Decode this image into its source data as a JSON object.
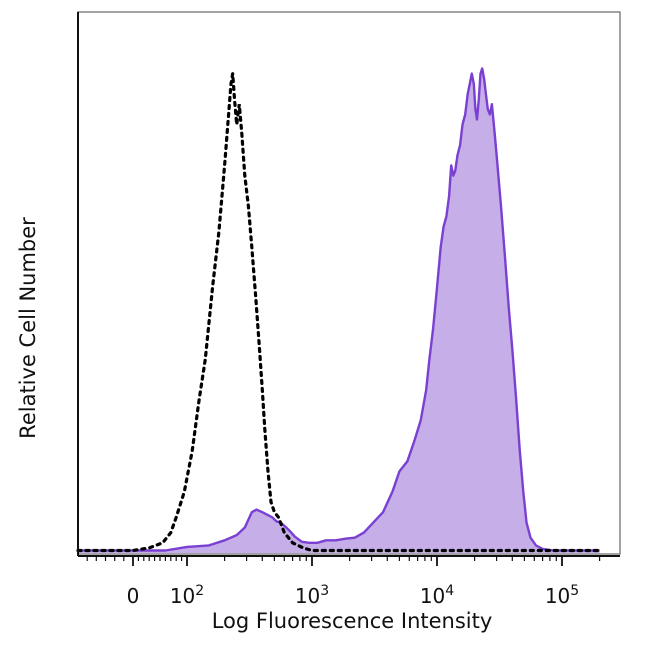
{
  "chart_data": {
    "type": "area",
    "title": "",
    "xlabel": "Log Fluorescence Intensity",
    "ylabel": "Relative Cell Number",
    "x_scale": "biexponential",
    "xlim": [
      -30,
      200000
    ],
    "ylim": [
      0,
      100
    ],
    "x_ticks": [
      {
        "value": 0,
        "label": "0",
        "sup": ""
      },
      {
        "value": 100,
        "label": "10",
        "sup": "2"
      },
      {
        "value": 1000,
        "label": "10",
        "sup": "3"
      },
      {
        "value": 10000,
        "label": "10",
        "sup": "4"
      },
      {
        "value": 100000,
        "label": "10",
        "sup": "5"
      }
    ],
    "grid": false,
    "legend": "none",
    "series": [
      {
        "style": "dotted",
        "color": "#000000",
        "fill": false,
        "points": [
          [
            -30,
            0.5
          ],
          [
            -10,
            0.5
          ],
          [
            0,
            0.5
          ],
          [
            30,
            1
          ],
          [
            55,
            2
          ],
          [
            70,
            4
          ],
          [
            80,
            7
          ],
          [
            95,
            12
          ],
          [
            110,
            20
          ],
          [
            125,
            30
          ],
          [
            140,
            38
          ],
          [
            160,
            52
          ],
          [
            180,
            63
          ],
          [
            200,
            76
          ],
          [
            215,
            86
          ],
          [
            225,
            92
          ],
          [
            232,
            94
          ],
          [
            240,
            89
          ],
          [
            250,
            84
          ],
          [
            262,
            88
          ],
          [
            275,
            82
          ],
          [
            290,
            74
          ],
          [
            310,
            68
          ],
          [
            330,
            60
          ],
          [
            355,
            50
          ],
          [
            380,
            40
          ],
          [
            400,
            32
          ],
          [
            420,
            24
          ],
          [
            445,
            16
          ],
          [
            470,
            10
          ],
          [
            500,
            8
          ],
          [
            540,
            7
          ],
          [
            600,
            4
          ],
          [
            700,
            2
          ],
          [
            850,
            1
          ],
          [
            1000,
            0.5
          ],
          [
            10000,
            0.5
          ],
          [
            100000,
            0.5
          ],
          [
            200000,
            0.5
          ]
        ]
      },
      {
        "style": "solid",
        "color": "#7a40d2",
        "fill_color": "#c6aee8",
        "fill": true,
        "points": [
          [
            -30,
            0.5
          ],
          [
            0,
            0.5
          ],
          [
            60,
            0.5
          ],
          [
            100,
            1.2
          ],
          [
            150,
            1.5
          ],
          [
            200,
            2.5
          ],
          [
            250,
            3.5
          ],
          [
            290,
            5
          ],
          [
            330,
            8
          ],
          [
            360,
            8.5
          ],
          [
            400,
            8
          ],
          [
            440,
            7.5
          ],
          [
            480,
            7
          ],
          [
            520,
            6.2
          ],
          [
            560,
            6
          ],
          [
            610,
            5.2
          ],
          [
            660,
            4.4
          ],
          [
            730,
            3.2
          ],
          [
            830,
            2.2
          ],
          [
            950,
            2
          ],
          [
            1100,
            2
          ],
          [
            1300,
            2.5
          ],
          [
            1550,
            2.5
          ],
          [
            1850,
            2.8
          ],
          [
            2200,
            3
          ],
          [
            2600,
            4
          ],
          [
            3100,
            6
          ],
          [
            3700,
            8
          ],
          [
            4400,
            12
          ],
          [
            5000,
            16
          ],
          [
            5800,
            18
          ],
          [
            6600,
            22
          ],
          [
            7400,
            26
          ],
          [
            8200,
            32
          ],
          [
            8700,
            38
          ],
          [
            9300,
            44
          ],
          [
            10000,
            52
          ],
          [
            10700,
            60
          ],
          [
            11300,
            64
          ],
          [
            11900,
            66
          ],
          [
            12500,
            70
          ],
          [
            13000,
            76
          ],
          [
            13500,
            74
          ],
          [
            14000,
            75
          ],
          [
            14600,
            78
          ],
          [
            15300,
            80
          ],
          [
            16000,
            84
          ],
          [
            16800,
            86
          ],
          [
            17600,
            90
          ],
          [
            18300,
            92
          ],
          [
            19000,
            94
          ],
          [
            19700,
            92
          ],
          [
            20300,
            87
          ],
          [
            20900,
            85
          ],
          [
            21600,
            89
          ],
          [
            22300,
            94
          ],
          [
            23000,
            95
          ],
          [
            23800,
            93
          ],
          [
            24600,
            90
          ],
          [
            25500,
            87
          ],
          [
            26500,
            86
          ],
          [
            27500,
            88
          ],
          [
            29000,
            82
          ],
          [
            30500,
            76
          ],
          [
            32500,
            68
          ],
          [
            35000,
            58
          ],
          [
            37500,
            48
          ],
          [
            40000,
            40
          ],
          [
            43000,
            30
          ],
          [
            46000,
            20
          ],
          [
            49000,
            12
          ],
          [
            52000,
            6
          ],
          [
            56000,
            3
          ],
          [
            62000,
            1.5
          ],
          [
            70000,
            0.8
          ],
          [
            85000,
            0.5
          ],
          [
            120000,
            0.5
          ],
          [
            200000,
            0.5
          ]
        ]
      }
    ]
  }
}
